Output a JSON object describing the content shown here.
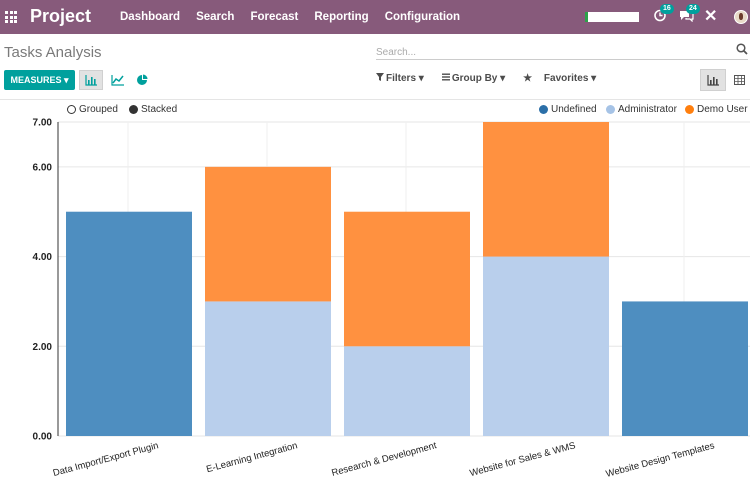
{
  "app": {
    "brand": "Project",
    "menu": [
      "Dashboard",
      "Search",
      "Forecast",
      "Reporting",
      "Configuration"
    ],
    "activity_count": "16",
    "messages_count": "24"
  },
  "control": {
    "title": "Tasks Analysis",
    "search_placeholder": "Search...",
    "measures_label": "MEASURES ▾",
    "filters_label": "Filters ▾",
    "groupby_label": "Group By ▾",
    "favorites_label": "Favorites ▾"
  },
  "toggles": {
    "grouped": "Grouped",
    "stacked": "Stacked"
  },
  "colors": {
    "undefined": "#4e8ec0",
    "administrator": "#b9cfec",
    "demo_user": "#ff9140"
  },
  "chart_data": {
    "type": "bar",
    "stacked": true,
    "categories": [
      "Data Import/Export Plugin",
      "E-Learning Integration",
      "Research & Development",
      "Website for Sales & WMS",
      "Website Design Templates"
    ],
    "series": [
      {
        "name": "Undefined",
        "values": [
          5,
          0,
          0,
          0,
          3
        ]
      },
      {
        "name": "Administrator",
        "values": [
          0,
          3,
          2,
          4,
          0
        ]
      },
      {
        "name": "Demo User",
        "values": [
          0,
          3,
          3,
          3,
          0
        ]
      }
    ],
    "yticks": [
      "0.00",
      "2.00",
      "4.00",
      "6.00",
      "7.00"
    ],
    "ylim": [
      0,
      7
    ],
    "legend_position": "top-right",
    "grid": true
  }
}
